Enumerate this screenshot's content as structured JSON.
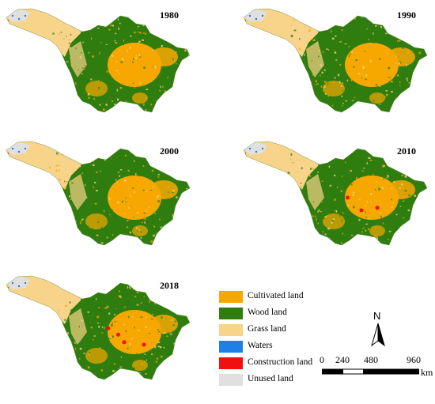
{
  "maps": [
    {
      "year": "1980",
      "construction": []
    },
    {
      "year": "1990",
      "construction": []
    },
    {
      "year": "2000",
      "construction": []
    },
    {
      "year": "2010",
      "construction": [
        [
          0.55,
          0.5
        ],
        [
          0.62,
          0.6
        ],
        [
          0.7,
          0.58
        ]
      ]
    },
    {
      "year": "2018",
      "construction": [
        [
          0.54,
          0.47
        ],
        [
          0.62,
          0.58
        ],
        [
          0.72,
          0.6
        ],
        [
          0.59,
          0.52
        ]
      ]
    }
  ],
  "legend": [
    {
      "label": "Cultivated land",
      "color": "#F7A800"
    },
    {
      "label": "Wood land",
      "color": "#2F7D0F"
    },
    {
      "label": "Grass land",
      "color": "#F8D38A"
    },
    {
      "label": "Waters",
      "color": "#1E7FE6"
    },
    {
      "label": "Construction land",
      "color": "#F01010"
    },
    {
      "label": "Unused land",
      "color": "#E0E0E0"
    }
  ],
  "north_arrow": {
    "label": "N"
  },
  "scale_bar": {
    "ticks": [
      "0",
      "240",
      "480",
      "960"
    ],
    "unit": "km"
  }
}
